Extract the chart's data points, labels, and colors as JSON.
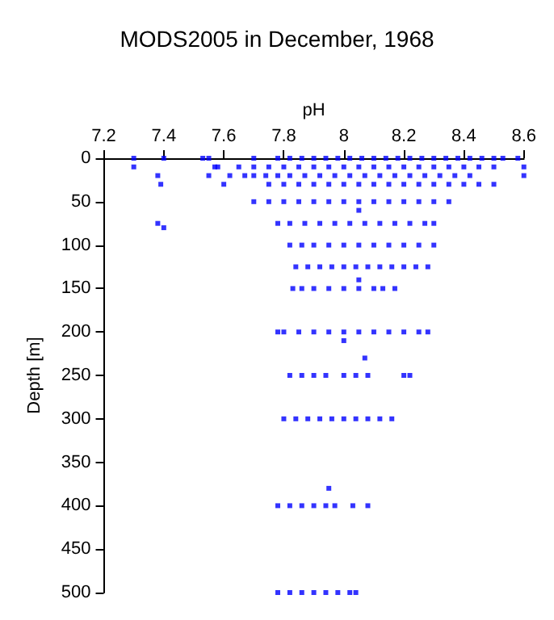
{
  "chart_data": {
    "type": "scatter",
    "title": "MODS2005 in December, 1968",
    "xlabel": "pH",
    "ylabel": "Depth [m]",
    "xlim": [
      7.2,
      8.6
    ],
    "xticks": [
      7.2,
      7.4,
      7.6,
      7.8,
      8,
      8.2,
      8.4,
      8.6
    ],
    "ylim": [
      500,
      0
    ],
    "yticks": [
      0,
      50,
      100,
      150,
      200,
      250,
      300,
      350,
      400,
      450,
      500
    ],
    "grid": false,
    "marker": "square",
    "series": [
      {
        "color": "#0000ff",
        "x": [
          7.3,
          7.4,
          7.53,
          7.55,
          7.7,
          7.78,
          7.82,
          7.86,
          7.9,
          7.94,
          7.98,
          8.02,
          8.06,
          8.1,
          8.14,
          8.18,
          8.22,
          8.26,
          8.3,
          8.34,
          8.38,
          8.42,
          8.46,
          8.5,
          8.53,
          8.58,
          7.3,
          7.57,
          7.58,
          7.65,
          7.7,
          7.75,
          7.8,
          7.85,
          7.9,
          7.95,
          8.0,
          8.05,
          8.1,
          8.15,
          8.2,
          8.25,
          8.3,
          8.35,
          8.4,
          8.45,
          8.5,
          8.6,
          7.38,
          7.55,
          7.62,
          7.67,
          7.7,
          7.74,
          7.78,
          7.82,
          7.87,
          7.92,
          7.97,
          8.02,
          8.07,
          8.12,
          8.17,
          8.22,
          8.27,
          8.32,
          8.37,
          8.42,
          8.6,
          7.39,
          7.6,
          7.75,
          7.8,
          7.85,
          7.9,
          7.95,
          8.0,
          8.05,
          8.1,
          8.15,
          8.2,
          8.25,
          8.3,
          8.35,
          8.4,
          8.45,
          8.5,
          7.7,
          7.75,
          7.8,
          7.85,
          7.9,
          7.95,
          8.0,
          8.05,
          8.1,
          8.15,
          8.2,
          8.25,
          8.3,
          8.35,
          7.38,
          7.78,
          7.82,
          7.87,
          7.92,
          7.97,
          8.02,
          8.07,
          8.12,
          8.17,
          8.22,
          8.27,
          8.3,
          7.4,
          7.82,
          7.86,
          7.9,
          7.95,
          8.0,
          8.05,
          8.1,
          8.15,
          8.2,
          8.25,
          8.3,
          7.84,
          7.88,
          7.92,
          7.96,
          8.0,
          8.04,
          8.08,
          8.12,
          8.16,
          8.2,
          8.24,
          8.28,
          7.83,
          7.86,
          7.9,
          7.95,
          8.0,
          8.05,
          8.1,
          8.13,
          8.17,
          7.78,
          7.8,
          7.85,
          7.9,
          7.95,
          8.0,
          8.05,
          8.1,
          8.15,
          8.2,
          8.25,
          8.28,
          7.82,
          7.86,
          7.9,
          7.94,
          8.0,
          8.04,
          8.08,
          8.2,
          8.22,
          7.8,
          7.84,
          7.88,
          7.92,
          7.96,
          8.0,
          8.04,
          8.08,
          8.12,
          8.16,
          7.78,
          7.82,
          7.86,
          7.9,
          7.94,
          7.97,
          8.03,
          8.08,
          7.78,
          7.82,
          7.86,
          7.9,
          7.94,
          7.98,
          8.02,
          8.04,
          8.0,
          8.07,
          7.95,
          8.05,
          8.05
        ],
        "values": [
          0,
          0,
          0,
          0,
          0,
          0,
          0,
          0,
          0,
          0,
          0,
          0,
          0,
          0,
          0,
          0,
          0,
          0,
          0,
          0,
          0,
          0,
          0,
          0,
          0,
          0,
          10,
          10,
          10,
          10,
          10,
          10,
          10,
          10,
          10,
          10,
          10,
          10,
          10,
          10,
          10,
          10,
          10,
          10,
          10,
          10,
          10,
          10,
          20,
          20,
          20,
          20,
          20,
          20,
          20,
          20,
          20,
          20,
          20,
          20,
          20,
          20,
          20,
          20,
          20,
          20,
          20,
          20,
          20,
          30,
          30,
          30,
          30,
          30,
          30,
          30,
          30,
          30,
          30,
          30,
          30,
          30,
          30,
          30,
          30,
          30,
          30,
          50,
          50,
          50,
          50,
          50,
          50,
          50,
          50,
          50,
          50,
          50,
          50,
          50,
          50,
          75,
          75,
          75,
          75,
          75,
          75,
          75,
          75,
          75,
          75,
          75,
          75,
          75,
          80,
          100,
          100,
          100,
          100,
          100,
          100,
          100,
          100,
          100,
          100,
          100,
          125,
          125,
          125,
          125,
          125,
          125,
          125,
          125,
          125,
          125,
          125,
          125,
          150,
          150,
          150,
          150,
          150,
          150,
          150,
          150,
          150,
          200,
          200,
          200,
          200,
          200,
          200,
          200,
          200,
          200,
          200,
          200,
          200,
          250,
          250,
          250,
          250,
          250,
          250,
          250,
          250,
          250,
          300,
          300,
          300,
          300,
          300,
          300,
          300,
          300,
          300,
          300,
          400,
          400,
          400,
          400,
          400,
          400,
          400,
          400,
          500,
          500,
          500,
          500,
          500,
          500,
          500,
          500,
          210,
          230,
          380,
          140,
          60
        ]
      }
    ]
  }
}
